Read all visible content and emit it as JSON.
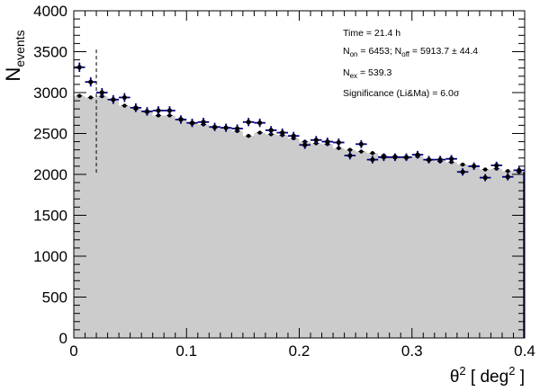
{
  "chart_data": {
    "type": "histogram",
    "title": "",
    "xlabel": {
      "base": "θ",
      "sup": "2",
      "unit_open": " [ deg",
      "unit_sup": "2",
      "unit_close": " ]"
    },
    "ylabel": {
      "base": "N",
      "sub": "events"
    },
    "xlim": [
      0,
      0.4
    ],
    "ylim": [
      0,
      4000
    ],
    "xticks": [
      0,
      0.1,
      0.2,
      0.3,
      0.4
    ],
    "xtick_labels": [
      "0",
      "0.1",
      "0.2",
      "0.3",
      "0.4"
    ],
    "yticks": [
      0,
      500,
      1000,
      1500,
      2000,
      2500,
      3000,
      3500,
      4000
    ],
    "ytick_labels": [
      "0",
      "500",
      "1000",
      "1500",
      "2000",
      "2500",
      "3000",
      "3500",
      "4000"
    ],
    "grid": false,
    "bin_width": 0.01,
    "cut_line": {
      "x": 0.02,
      "y_range": [
        2020,
        3530
      ]
    },
    "series": [
      {
        "kind": "on",
        "style": "points-with-errors",
        "color": "#00007f",
        "x": [
          0.005,
          0.015,
          0.025,
          0.035,
          0.045,
          0.055,
          0.065,
          0.075,
          0.085,
          0.095,
          0.105,
          0.115,
          0.125,
          0.135,
          0.145,
          0.155,
          0.165,
          0.175,
          0.185,
          0.195,
          0.205,
          0.215,
          0.225,
          0.235,
          0.245,
          0.255,
          0.265,
          0.275,
          0.285,
          0.295,
          0.305,
          0.315,
          0.325,
          0.335,
          0.345,
          0.355,
          0.365,
          0.375,
          0.385,
          0.395
        ],
        "y": [
          3310,
          3130,
          3000,
          2915,
          2940,
          2815,
          2770,
          2780,
          2780,
          2670,
          2630,
          2640,
          2580,
          2570,
          2560,
          2640,
          2630,
          2540,
          2510,
          2470,
          2360,
          2420,
          2400,
          2390,
          2230,
          2370,
          2180,
          2210,
          2210,
          2210,
          2240,
          2180,
          2180,
          2190,
          2030,
          2100,
          1960,
          2110,
          1970,
          2050
        ]
      },
      {
        "kind": "off",
        "style": "filled-histogram",
        "fill": "#cccccc",
        "marker_color": "#000000",
        "x": [
          0.005,
          0.015,
          0.025,
          0.035,
          0.045,
          0.055,
          0.065,
          0.075,
          0.085,
          0.095,
          0.105,
          0.115,
          0.125,
          0.135,
          0.145,
          0.155,
          0.165,
          0.175,
          0.185,
          0.195,
          0.205,
          0.215,
          0.225,
          0.235,
          0.245,
          0.255,
          0.265,
          0.275,
          0.285,
          0.295,
          0.305,
          0.315,
          0.325,
          0.335,
          0.345,
          0.355,
          0.365,
          0.375,
          0.385,
          0.395
        ],
        "y": [
          2960,
          2940,
          2955,
          2910,
          2840,
          2800,
          2760,
          2720,
          2720,
          2680,
          2620,
          2610,
          2570,
          2570,
          2530,
          2470,
          2510,
          2490,
          2480,
          2440,
          2400,
          2380,
          2370,
          2320,
          2300,
          2280,
          2260,
          2230,
          2220,
          2200,
          2220,
          2170,
          2160,
          2150,
          2120,
          2100,
          2060,
          2070,
          2040,
          2030
        ]
      }
    ],
    "stats": {
      "time": "Time = 21.4 h",
      "non_label": "N",
      "non_sub": "on",
      "non_value": " = 6453; ",
      "noff_label": "N",
      "noff_sub": "off",
      "noff_value": " = 5913.7 ± 44.4",
      "nex_label": "N",
      "nex_sub": "ex",
      "nex_value": " = 539.3",
      "significance": "Significance (Li&Ma) = 6.0σ"
    }
  }
}
